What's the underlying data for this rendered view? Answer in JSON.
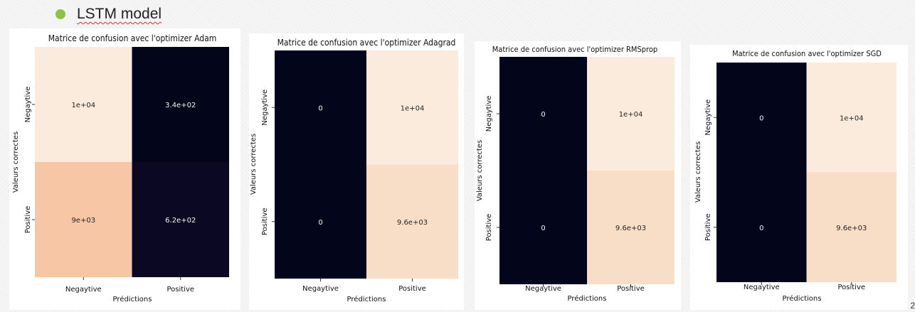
{
  "slide": {
    "bullet_text": "LSTM model",
    "page_number": "2"
  },
  "chart_data": [
    {
      "type": "heatmap",
      "title": "Matrice de confusion avec l'optimizer Adam",
      "xlabel": "Prédictions",
      "ylabel": "Valeurs correctes",
      "x_categories": [
        "Negaytive",
        "Positive"
      ],
      "y_categories": [
        "Negaytive",
        "Positive"
      ],
      "values": [
        [
          10000,
          340
        ],
        [
          9000,
          620
        ]
      ],
      "annotations": [
        [
          "1e+04",
          "3.4e+02"
        ],
        [
          "9e+03",
          "6.2e+02"
        ]
      ]
    },
    {
      "type": "heatmap",
      "title": "Matrice de confusion avec l'optimizer Adagrad",
      "xlabel": "Prédictions",
      "ylabel": "Valeurs correctes",
      "x_categories": [
        "Negaytive",
        "Positive"
      ],
      "y_categories": [
        "Negaytive",
        "Positive"
      ],
      "values": [
        [
          0,
          10000
        ],
        [
          0,
          9600
        ]
      ],
      "annotations": [
        [
          "0",
          "1e+04"
        ],
        [
          "0",
          "9.6e+03"
        ]
      ]
    },
    {
      "type": "heatmap",
      "title": "Matrice de confusion avec l'optimizer RMSprop",
      "xlabel": "Prédictions",
      "ylabel": "Valeurs correctes",
      "x_categories": [
        "Negaytive",
        "Positive"
      ],
      "y_categories": [
        "Negaytive",
        "Positive"
      ],
      "values": [
        [
          0,
          10000
        ],
        [
          0,
          9600
        ]
      ],
      "annotations": [
        [
          "0",
          "1e+04"
        ],
        [
          "0",
          "9.6e+03"
        ]
      ]
    },
    {
      "type": "heatmap",
      "title": "Matrice de confusion avec l'optimizer SGD",
      "xlabel": "Prédictions",
      "ylabel": "Valeurs correctes",
      "x_categories": [
        "Negaytive",
        "Positive"
      ],
      "y_categories": [
        "Negaytive",
        "Positive"
      ],
      "values": [
        [
          0,
          10000
        ],
        [
          0,
          9600
        ]
      ],
      "annotations": [
        [
          "0",
          "1e+04"
        ],
        [
          "0",
          "9.6e+03"
        ]
      ]
    }
  ]
}
